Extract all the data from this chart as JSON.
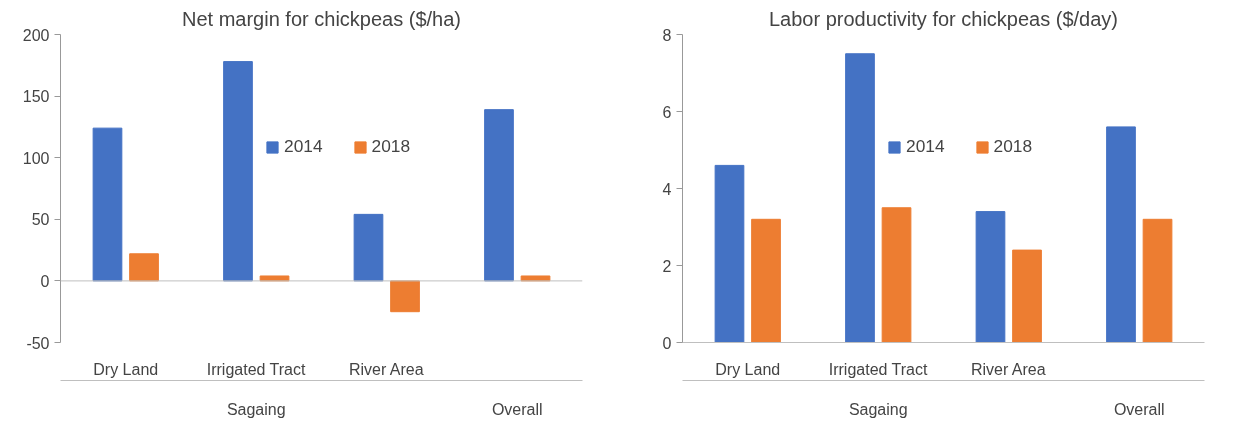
{
  "chart_data": [
    {
      "type": "bar",
      "title": "Net margin for chickpeas ($/ha)",
      "categories": [
        "Dry Land",
        "Irrigated Tract",
        "River Area",
        null
      ],
      "annotations": [
        "Sagaing",
        "Overall"
      ],
      "series": [
        {
          "name": "2014",
          "color": "#4472c4",
          "values": [
            124,
            178,
            54,
            139
          ]
        },
        {
          "name": "2018",
          "color": "#ed7d31",
          "values": [
            22,
            4,
            -25,
            4
          ]
        }
      ],
      "ylim": [
        -50,
        200
      ],
      "yticks": [
        -50,
        0,
        50,
        100,
        150,
        200
      ],
      "legend": "top"
    },
    {
      "type": "bar",
      "title": "Labor productivity for chickpeas ($/day)",
      "categories": [
        "Dry Land",
        "Irrigated Tract",
        "River Area",
        null
      ],
      "annotations": [
        "Sagaing",
        "Overall"
      ],
      "series": [
        {
          "name": "2014",
          "color": "#4472c4",
          "values": [
            4.6,
            7.5,
            3.4,
            5.6
          ]
        },
        {
          "name": "2018",
          "color": "#ed7d31",
          "values": [
            3.2,
            3.5,
            2.4,
            3.2
          ]
        }
      ],
      "ylim": [
        0,
        8
      ],
      "yticks": [
        0,
        2,
        4,
        6,
        8
      ],
      "legend": "top"
    }
  ]
}
